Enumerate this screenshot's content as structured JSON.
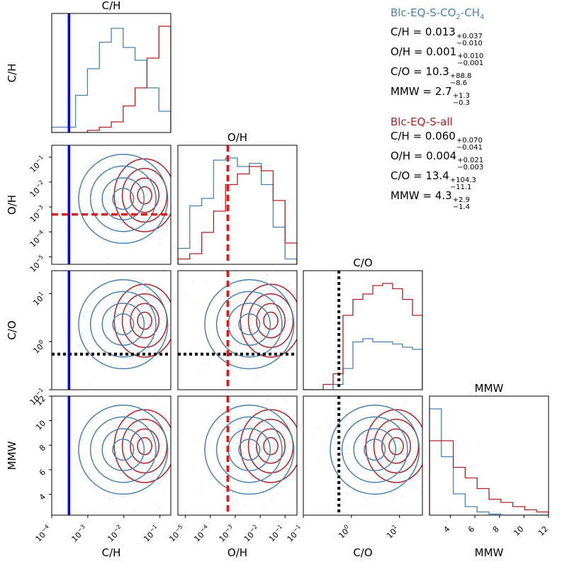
{
  "chart_data": {
    "type": "corner",
    "parameters": [
      "C/H",
      "O/H",
      "C/O",
      "MMW"
    ],
    "diag_titles": [
      "C/H",
      "O/H",
      "C/O",
      "MMW"
    ],
    "axes": {
      "CH": {
        "scale": "log",
        "range": [
          0.0001,
          0.2
        ],
        "ticks": [
          "10^-4",
          "10^-3",
          "10^-2",
          "10^-1"
        ],
        "label": "C/H"
      },
      "OH": {
        "scale": "log",
        "range": [
          5e-06,
          0.3
        ],
        "ticks": [
          "10^-5",
          "10^-4",
          "10^-3",
          "10^-2",
          "10^-1"
        ],
        "label": "O/H"
      },
      "CO": {
        "scale": "log",
        "range": [
          0.1,
          30
        ],
        "ticks": [
          "10^-1",
          "10^0",
          "10^1"
        ],
        "label": "C/O"
      },
      "MMW": {
        "scale": "linear",
        "range": [
          2.3,
          12
        ],
        "ticks": [
          "4",
          "6",
          "8",
          "10",
          "12"
        ],
        "label": "MMW"
      }
    },
    "reference_lines": {
      "CH": {
        "value": 0.0003,
        "style": "solid",
        "color": "#0000ff"
      },
      "OH": {
        "value": 0.0005,
        "style": "dashed",
        "color": "#ee1111"
      },
      "CO": {
        "value": 0.55,
        "style": "dotted",
        "color": "#000000"
      }
    },
    "series": [
      {
        "name": "Blc-EQ-S-CO2-CH4",
        "legend_title_parts": [
          "Blc-EQ-S-CO",
          "2",
          "-CH",
          "4"
        ],
        "color": "#4682b4",
        "stats": [
          {
            "label": "C/H = ",
            "median": "0.013",
            "plus": "+0.037",
            "minus": "−0.010"
          },
          {
            "label": "O/H = ",
            "median": "0.001",
            "plus": "+0.010",
            "minus": "−0.001"
          },
          {
            "label": "C/O = ",
            "median": "10.3",
            "plus": "+88.8",
            "minus": "−8.6"
          },
          {
            "label": "MMW = ",
            "median": "2.7",
            "plus": "+1.3",
            "minus": "−0.3"
          }
        ],
        "hist": {
          "CH": [
            0.05,
            0.05,
            0.35,
            0.6,
            0.85,
            0.98,
            0.8,
            0.68,
            0.42,
            0.2
          ],
          "OH": [
            0.15,
            0.55,
            0.62,
            0.98,
            1.0,
            0.92,
            0.95,
            0.75,
            0.35,
            0.05
          ],
          "CO": [
            0,
            0,
            0,
            0.05,
            0.2,
            0.45,
            0.48,
            0.45,
            0.45,
            0.43,
            0.4,
            0.38
          ],
          "MMW": [
            1.0,
            0.55,
            0.2,
            0.08,
            0.03,
            0.01,
            0.0,
            0.0,
            0.0,
            0.0
          ]
        }
      },
      {
        "name": "Blc-EQ-S-all",
        "legend_title_parts": [
          "Blc-EQ-S-all",
          "",
          "",
          ""
        ],
        "color": "#b22222",
        "stats": [
          {
            "label": "C/H = ",
            "median": "0.060",
            "plus": "+0.070",
            "minus": "−0.041"
          },
          {
            "label": "O/H = ",
            "median": "0.004",
            "plus": "+0.021",
            "minus": "−0.003"
          },
          {
            "label": "C/O = ",
            "median": "13.4",
            "plus": "+104.3",
            "minus": "−11.1"
          },
          {
            "label": "MMW = ",
            "median": "4.3",
            "plus": "+2.9",
            "minus": "−1.4"
          }
        ],
        "hist": {
          "CH": [
            0.0,
            0.0,
            0.0,
            0.02,
            0.05,
            0.1,
            0.25,
            0.42,
            0.7,
            1.0
          ],
          "OH": [
            0.05,
            0.1,
            0.3,
            0.5,
            0.75,
            0.85,
            0.92,
            0.88,
            0.6,
            0.2
          ],
          "CO": [
            0,
            0,
            0.05,
            0.15,
            0.7,
            0.85,
            0.9,
            0.98,
            1.0,
            0.95,
            0.85,
            0.7
          ],
          "MMW": [
            0.7,
            0.7,
            0.45,
            0.35,
            0.25,
            0.15,
            0.12,
            0.08,
            0.05,
            0.03
          ]
        }
      }
    ]
  }
}
